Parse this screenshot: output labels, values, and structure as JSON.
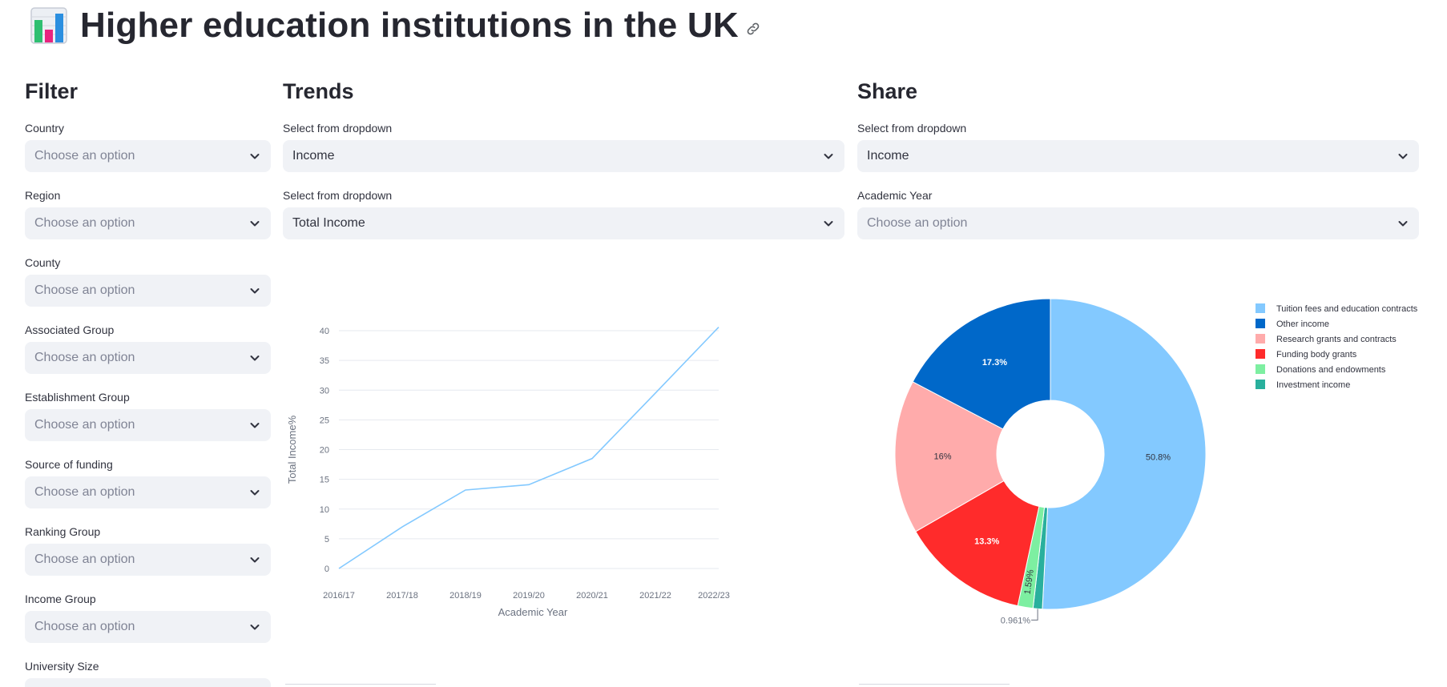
{
  "app": {
    "title": "Higher education institutions in the UK"
  },
  "filter": {
    "heading": "Filter",
    "fields": [
      {
        "label": "Country",
        "value": "Choose an option"
      },
      {
        "label": "Region",
        "value": "Choose an option"
      },
      {
        "label": "County",
        "value": "Choose an option"
      },
      {
        "label": "Associated Group",
        "value": "Choose an option"
      },
      {
        "label": "Establishment Group",
        "value": "Choose an option"
      },
      {
        "label": "Source of funding",
        "value": "Choose an option"
      },
      {
        "label": "Ranking Group",
        "value": "Choose an option"
      },
      {
        "label": "Income Group",
        "value": "Choose an option"
      },
      {
        "label": "University Size",
        "value": ""
      }
    ]
  },
  "trends": {
    "heading": "Trends",
    "select1": {
      "label": "Select from dropdown",
      "value": "Income"
    },
    "select2": {
      "label": "Select from dropdown",
      "value": "Total Income"
    }
  },
  "share": {
    "heading": "Share",
    "select1": {
      "label": "Select from dropdown",
      "value": "Income"
    },
    "select2": {
      "label": "Academic Year",
      "value": "Choose an option"
    }
  },
  "colors": {
    "line": "#83c9ff",
    "tuition": "#83c9ff",
    "other": "#0068c9",
    "research": "#ffabab",
    "funding": "#ff2b2b",
    "donations": "#7defa1",
    "investment": "#29b09d"
  },
  "icons": {
    "app": "bar-chart-icon",
    "link": "link-icon",
    "dropdown": "chevron-down-icon"
  },
  "chart_data": [
    {
      "type": "line",
      "x": [
        "2016/17",
        "2017/18",
        "2018/19",
        "2019/20",
        "2020/21",
        "2021/22",
        "2022/23"
      ],
      "series": [
        {
          "values": [
            0,
            7,
            13.2,
            14.1,
            18.5,
            29.5,
            40.6
          ]
        }
      ],
      "xlabel": "Academic Year",
      "ylabel": "Total Income%",
      "ylim": [
        0,
        40
      ],
      "yticks": [
        "0",
        "5",
        "10",
        "15",
        "20",
        "25",
        "30",
        "35",
        "40"
      ],
      "grid": true
    },
    {
      "type": "pie",
      "donut": true,
      "legend_position": "top-right",
      "slices": [
        {
          "label": "Tuition fees and education contracts",
          "value": 50.8,
          "text": "50.8%"
        },
        {
          "label": "Other income",
          "value": 17.3,
          "text": "17.3%"
        },
        {
          "label": "Research grants and contracts",
          "value": 16,
          "text": "16%"
        },
        {
          "label": "Funding body grants",
          "value": 13.3,
          "text": "13.3%"
        },
        {
          "label": "Donations and endowments",
          "value": 1.59,
          "text": "1.59%"
        },
        {
          "label": "Investment income",
          "value": 0.961,
          "text": "0.961%"
        }
      ]
    }
  ]
}
